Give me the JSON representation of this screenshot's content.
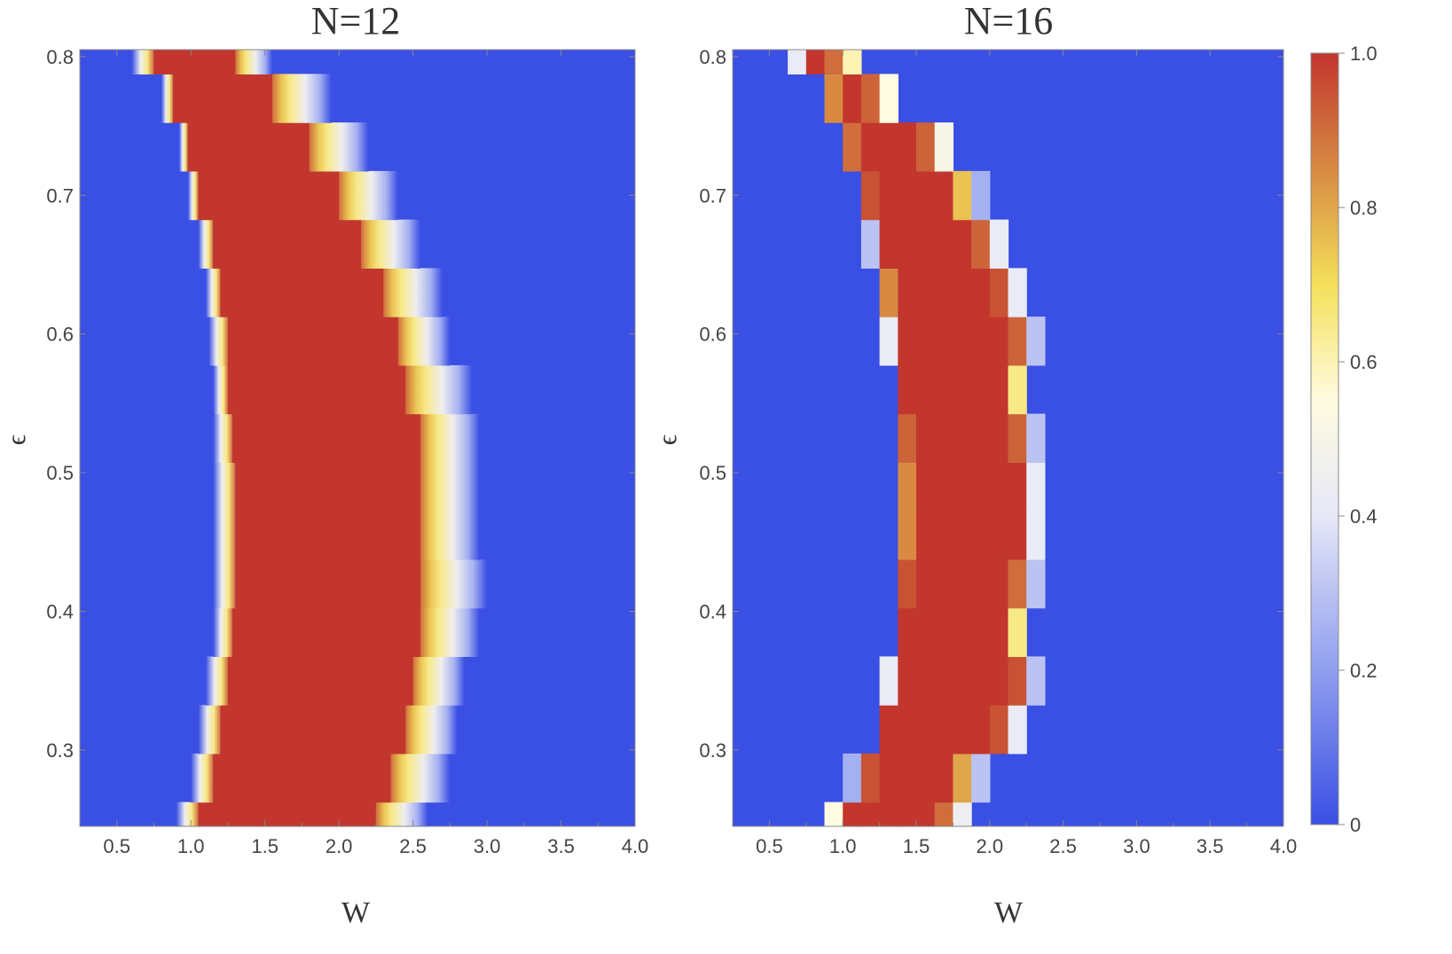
{
  "chart_data": [
    {
      "type": "heatmap",
      "title": "N=12",
      "xlabel": "W",
      "ylabel": "ϵ",
      "xlim": [
        0.25,
        4.0
      ],
      "ylim": [
        0.245,
        0.805
      ],
      "xticks": [
        "0.5",
        "1.0",
        "1.5",
        "2.0",
        "2.5",
        "3.0",
        "3.5",
        "4.0"
      ],
      "yticks": [
        "0.3",
        "0.4",
        "0.5",
        "0.6",
        "0.7",
        "0.8"
      ],
      "background_value": 0,
      "bands": [
        {
          "eps": [
            0.245,
            0.2625
          ],
          "red_W": [
            1.05,
            2.25
          ],
          "left_W": [
            0.9,
            1.05
          ],
          "right_W": [
            2.25,
            2.6
          ]
        },
        {
          "eps": [
            0.2625,
            0.2975
          ],
          "red_W": [
            1.15,
            2.35
          ],
          "left_W": [
            1.0,
            1.15
          ],
          "right_W": [
            2.35,
            2.75
          ]
        },
        {
          "eps": [
            0.2975,
            0.3325
          ],
          "red_W": [
            1.2,
            2.45
          ],
          "left_W": [
            1.05,
            1.2
          ],
          "right_W": [
            2.45,
            2.8
          ]
        },
        {
          "eps": [
            0.3325,
            0.3675
          ],
          "red_W": [
            1.25,
            2.5
          ],
          "left_W": [
            1.1,
            1.25
          ],
          "right_W": [
            2.5,
            2.85
          ]
        },
        {
          "eps": [
            0.3675,
            0.4025
          ],
          "red_W": [
            1.28,
            2.55
          ],
          "left_W": [
            1.15,
            1.28
          ],
          "right_W": [
            2.55,
            2.95
          ]
        },
        {
          "eps": [
            0.4025,
            0.4375
          ],
          "red_W": [
            1.3,
            2.55
          ],
          "left_W": [
            1.15,
            1.3
          ],
          "right_W": [
            2.55,
            3.0
          ]
        },
        {
          "eps": [
            0.4375,
            0.4725
          ],
          "red_W": [
            1.3,
            2.55
          ],
          "left_W": [
            1.15,
            1.3
          ],
          "right_W": [
            2.55,
            2.95
          ]
        },
        {
          "eps": [
            0.4725,
            0.5075
          ],
          "red_W": [
            1.3,
            2.55
          ],
          "left_W": [
            1.15,
            1.3
          ],
          "right_W": [
            2.55,
            2.95
          ]
        },
        {
          "eps": [
            0.5075,
            0.5425
          ],
          "red_W": [
            1.28,
            2.55
          ],
          "left_W": [
            1.15,
            1.28
          ],
          "right_W": [
            2.55,
            2.95
          ]
        },
        {
          "eps": [
            0.5425,
            0.5775
          ],
          "red_W": [
            1.25,
            2.45
          ],
          "left_W": [
            1.15,
            1.25
          ],
          "right_W": [
            2.45,
            2.9
          ]
        },
        {
          "eps": [
            0.5775,
            0.6125
          ],
          "red_W": [
            1.25,
            2.4
          ],
          "left_W": [
            1.12,
            1.25
          ],
          "right_W": [
            2.4,
            2.75
          ]
        },
        {
          "eps": [
            0.6125,
            0.6475
          ],
          "red_W": [
            1.2,
            2.3
          ],
          "left_W": [
            1.1,
            1.2
          ],
          "right_W": [
            2.3,
            2.7
          ]
        },
        {
          "eps": [
            0.6475,
            0.6825
          ],
          "red_W": [
            1.15,
            2.15
          ],
          "left_W": [
            1.05,
            1.15
          ],
          "right_W": [
            2.15,
            2.55
          ]
        },
        {
          "eps": [
            0.6825,
            0.7175
          ],
          "red_W": [
            1.05,
            2.0
          ],
          "left_W": [
            0.98,
            1.05
          ],
          "right_W": [
            2.0,
            2.4
          ]
        },
        {
          "eps": [
            0.7175,
            0.7525
          ],
          "red_W": [
            0.98,
            1.8
          ],
          "left_W": [
            0.92,
            0.98
          ],
          "right_W": [
            1.8,
            2.2
          ]
        },
        {
          "eps": [
            0.7525,
            0.7875
          ],
          "red_W": [
            0.88,
            1.55
          ],
          "left_W": [
            0.8,
            0.88
          ],
          "right_W": [
            1.55,
            1.95
          ]
        },
        {
          "eps": [
            0.7875,
            0.805
          ],
          "red_W": [
            0.75,
            1.3
          ],
          "left_W": [
            0.6,
            0.75
          ],
          "right_W": [
            1.3,
            1.55
          ]
        }
      ]
    },
    {
      "type": "heatmap",
      "title": "N=16",
      "xlabel": "W",
      "ylabel": "ϵ",
      "xlim": [
        0.25,
        4.0
      ],
      "ylim": [
        0.245,
        0.805
      ],
      "xticks": [
        "0.5",
        "1.0",
        "1.5",
        "2.0",
        "2.5",
        "3.0",
        "3.5",
        "4.0"
      ],
      "yticks": [
        "0.3",
        "0.4",
        "0.5",
        "0.6",
        "0.7",
        "0.8"
      ],
      "background_value": 0,
      "cell_width": 0.125,
      "rows": [
        {
          "eps": [
            0.245,
            0.2625
          ],
          "x0": 0.875,
          "values": [
            0.55,
            1,
            1,
            1,
            1,
            1,
            0.9,
            0.45
          ]
        },
        {
          "eps": [
            0.2625,
            0.2975
          ],
          "x0": 1.0,
          "values": [
            0.25,
            0.95,
            1,
            1,
            1,
            1,
            0.8,
            0.3
          ]
        },
        {
          "eps": [
            0.2975,
            0.3325
          ],
          "x0": 1.25,
          "values": [
            1,
            1,
            1,
            1,
            1,
            1,
            0.95,
            0.42
          ]
        },
        {
          "eps": [
            0.3325,
            0.3675
          ],
          "x0": 1.25,
          "values": [
            0.42,
            1,
            1,
            1,
            1,
            1,
            1,
            0.95,
            0.3
          ]
        },
        {
          "eps": [
            0.3675,
            0.4025
          ],
          "x0": 1.375,
          "values": [
            1,
            1,
            1,
            1,
            1,
            1,
            0.65
          ]
        },
        {
          "eps": [
            0.4025,
            0.4375
          ],
          "x0": 1.375,
          "values": [
            0.95,
            1,
            1,
            1,
            1,
            1,
            0.9,
            0.3
          ]
        },
        {
          "eps": [
            0.4375,
            0.4725
          ],
          "x0": 1.375,
          "values": [
            0.85,
            1,
            1,
            1,
            1,
            1,
            1,
            0.42
          ]
        },
        {
          "eps": [
            0.4725,
            0.5075
          ],
          "x0": 1.375,
          "values": [
            0.85,
            1,
            1,
            1,
            1,
            1,
            1,
            0.42
          ]
        },
        {
          "eps": [
            0.5075,
            0.5425
          ],
          "x0": 1.375,
          "values": [
            0.92,
            1,
            1,
            1,
            1,
            1,
            0.92,
            0.3
          ]
        },
        {
          "eps": [
            0.5425,
            0.5775
          ],
          "x0": 1.375,
          "values": [
            1,
            1,
            1,
            1,
            1,
            1,
            0.65
          ]
        },
        {
          "eps": [
            0.5775,
            0.6125
          ],
          "x0": 1.25,
          "values": [
            0.42,
            1,
            1,
            1,
            1,
            1,
            1,
            0.92,
            0.3
          ]
        },
        {
          "eps": [
            0.6125,
            0.6475
          ],
          "x0": 1.25,
          "values": [
            0.85,
            1,
            1,
            1,
            1,
            1,
            0.95,
            0.42
          ]
        },
        {
          "eps": [
            0.6475,
            0.6825
          ],
          "x0": 1.125,
          "values": [
            0.3,
            1,
            1,
            1,
            1,
            1,
            0.92,
            0.42
          ]
        },
        {
          "eps": [
            0.6825,
            0.7175
          ],
          "x0": 1.125,
          "values": [
            0.95,
            1,
            1,
            1,
            1,
            0.75,
            0.25
          ]
        },
        {
          "eps": [
            0.7175,
            0.7525
          ],
          "x0": 1.0,
          "values": [
            0.9,
            1,
            1,
            1,
            0.92,
            0.5
          ]
        },
        {
          "eps": [
            0.7525,
            0.7875
          ],
          "x0": 0.875,
          "values": [
            0.85,
            1,
            0.92,
            0.55
          ]
        },
        {
          "eps": [
            0.7875,
            0.805
          ],
          "x0": 0.625,
          "values": [
            0.42,
            1,
            0.9,
            0.6
          ]
        }
      ]
    }
  ],
  "colorbar": {
    "min": 0,
    "max": 1,
    "tick_values": [
      0,
      0.2,
      0.4,
      0.6,
      0.8,
      1.0
    ],
    "tick_labels": [
      "0",
      "0.2",
      "0.4",
      "0.6",
      "0.8",
      "1.0"
    ]
  }
}
